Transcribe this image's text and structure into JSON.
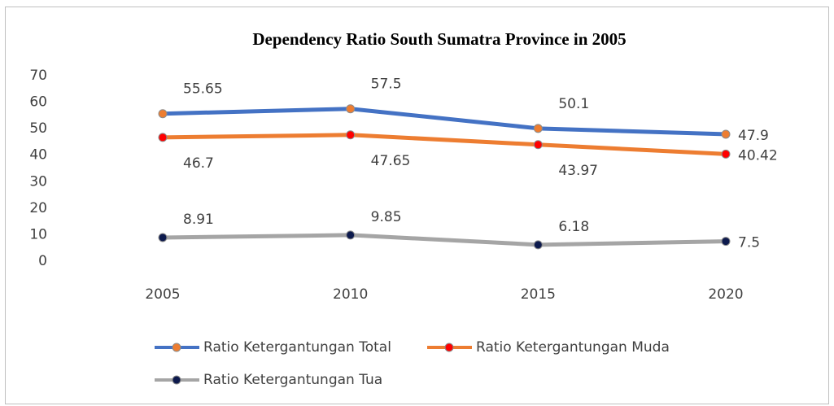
{
  "chart_data": {
    "type": "line",
    "title": "Dependency Ratio South Sumatra Province in 2005",
    "categories": [
      "2005",
      "2010",
      "2015",
      "2020"
    ],
    "series": [
      {
        "name": "Ratio Ketergantungan Total",
        "color": "#4472c4",
        "marker_color": "#ed7d31",
        "values": [
          55.65,
          57.5,
          50.1,
          47.9
        ]
      },
      {
        "name": "Ratio Ketergantungan Muda",
        "color": "#ed7d31",
        "marker_color": "#ff0000",
        "values": [
          46.7,
          47.65,
          43.97,
          40.42
        ]
      },
      {
        "name": "Ratio Ketergantungan Tua",
        "color": "#a5a5a5",
        "marker_color": "#0d1a4d",
        "values": [
          8.91,
          9.85,
          6.18,
          7.5
        ]
      }
    ],
    "ylim": [
      0,
      70
    ],
    "yticks": [
      0,
      10,
      20,
      30,
      40,
      50,
      60,
      70
    ],
    "grid": false
  }
}
